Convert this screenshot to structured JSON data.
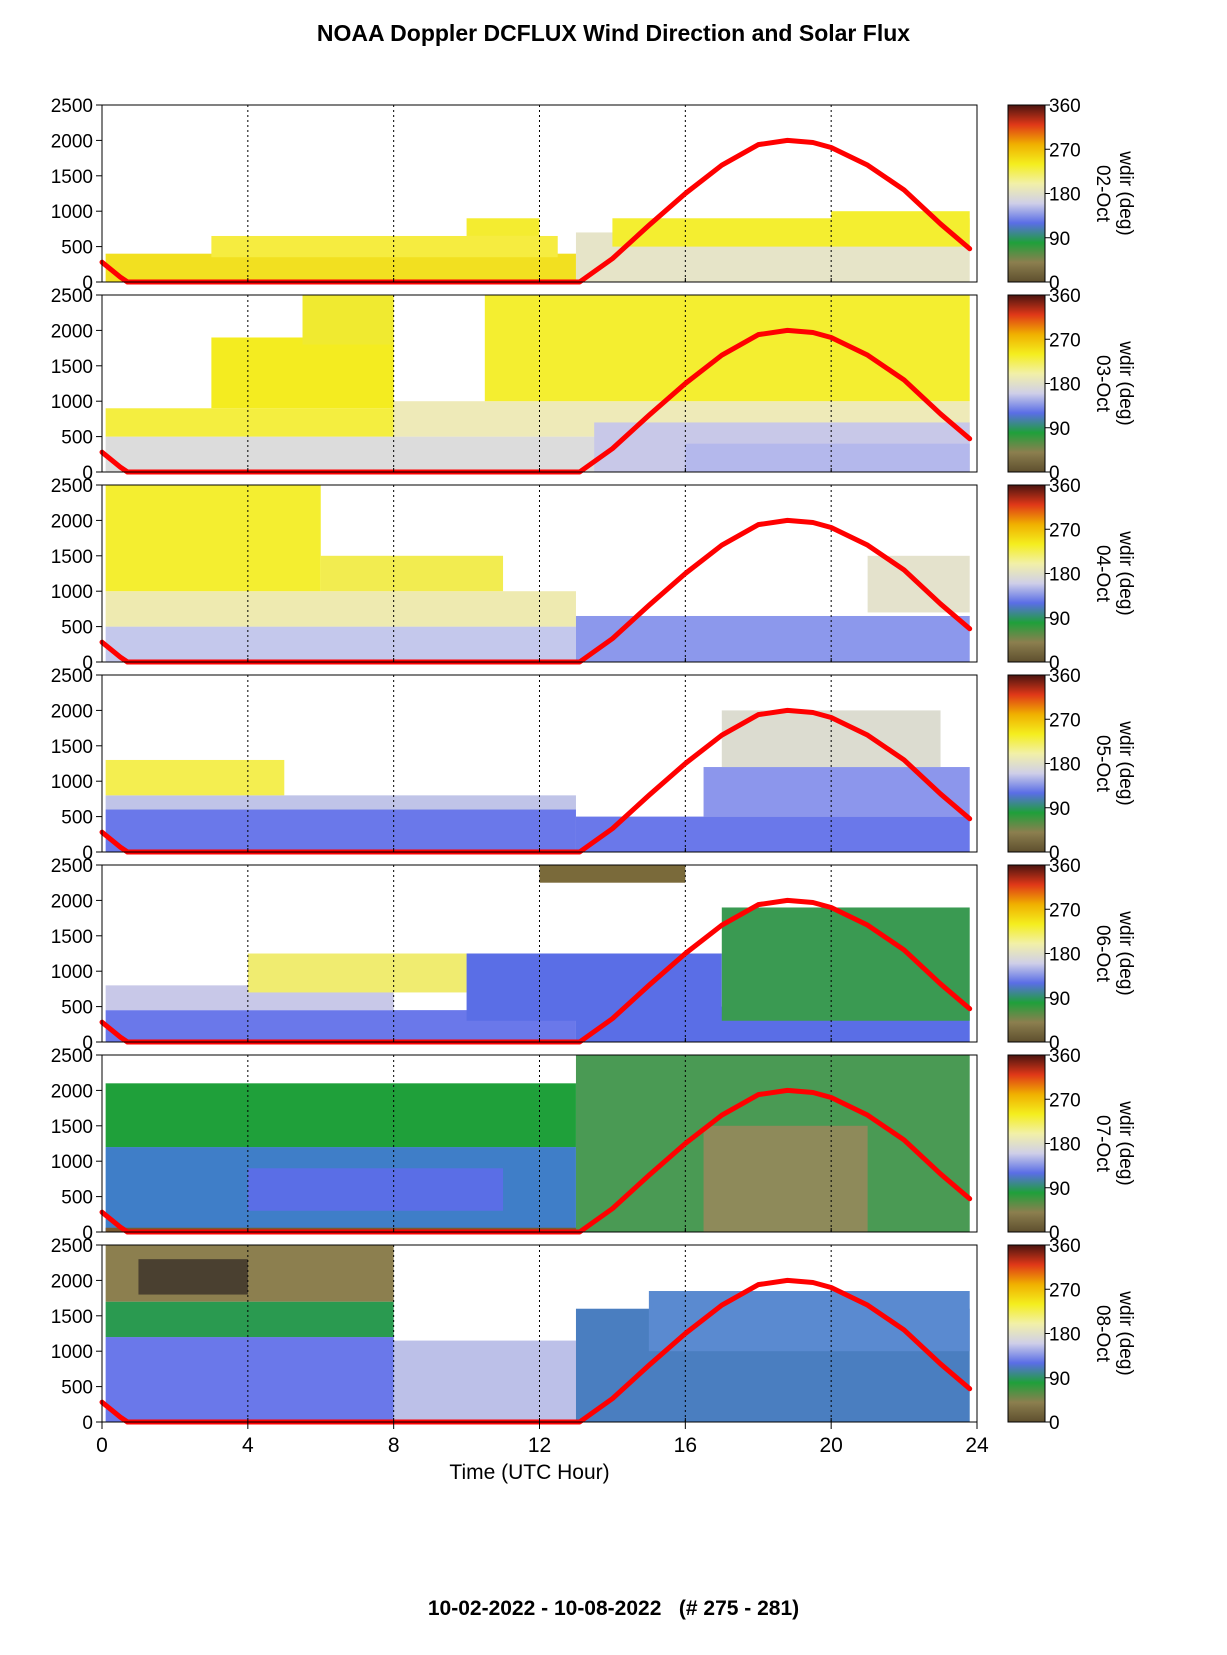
{
  "title": "NOAA Doppler DCFLUX Wind Direction and Solar Flux",
  "footer": "10-02-2022 - 10-08-2022   (# 275 - 281)",
  "colorbar": {
    "label": "wdir (deg)",
    "ticks": [
      "0",
      "90",
      "180",
      "270",
      "360"
    ],
    "stops": [
      "#5e4f2e",
      "#8c7f4f",
      "#1fa03a",
      "#5a6ee6",
      "#cfcfe8",
      "#f2f0a8",
      "#f4ee1e",
      "#f0b000",
      "#e03818",
      "#4a1410"
    ]
  },
  "chart_data": {
    "type": "heatmap",
    "xlabel": "Time (UTC Hour)",
    "xlim": [
      0,
      24
    ],
    "xticks": [
      "0",
      "4",
      "8",
      "12",
      "16",
      "20",
      "24"
    ],
    "ylim": [
      0,
      2500
    ],
    "yticks": [
      "0",
      "500",
      "1000",
      "1500",
      "2000",
      "2500"
    ],
    "grid": "vertical dotted lines at x = 4, 8, 12, 16, 20",
    "solar_flux_curve": {
      "color": "#ff0000",
      "x": [
        0,
        0.5,
        0.7,
        13.1,
        14,
        15,
        16,
        17,
        18,
        18.8,
        19.5,
        20,
        21,
        22,
        23,
        23.8
      ],
      "y": [
        280,
        70,
        0,
        0,
        330,
        800,
        1250,
        1650,
        1940,
        2000,
        1970,
        1900,
        1650,
        1300,
        820,
        470
      ]
    },
    "panels": [
      {
        "date": "02-Oct",
        "blocks": [
          {
            "x0": 0.1,
            "x1": 13.0,
            "y0": 0,
            "y1": 400,
            "c": "#f2e020"
          },
          {
            "x0": 3.0,
            "x1": 12.5,
            "y0": 350,
            "y1": 650,
            "c": "#f6ec40"
          },
          {
            "x0": 10.0,
            "x1": 12.0,
            "y0": 650,
            "y1": 900,
            "c": "#f4ec30"
          },
          {
            "x0": 13.0,
            "x1": 23.8,
            "y0": 0,
            "y1": 700,
            "c": "#e6e4c8"
          },
          {
            "x0": 14.0,
            "x1": 23.8,
            "y0": 500,
            "y1": 900,
            "c": "#f4ee30"
          },
          {
            "x0": 20.0,
            "x1": 23.8,
            "y0": 700,
            "y1": 1000,
            "c": "#f4ee30"
          }
        ]
      },
      {
        "date": "03-Oct",
        "blocks": [
          {
            "x0": 0.1,
            "x1": 23.8,
            "y0": 0,
            "y1": 500,
            "c": "#dcdcdc"
          },
          {
            "x0": 0.1,
            "x1": 8.0,
            "y0": 500,
            "y1": 900,
            "c": "#f4ee40"
          },
          {
            "x0": 3.0,
            "x1": 8.0,
            "y0": 900,
            "y1": 1900,
            "c": "#f4ec20"
          },
          {
            "x0": 5.5,
            "x1": 8.0,
            "y0": 1800,
            "y1": 2500,
            "c": "#f0ea30"
          },
          {
            "x0": 8.0,
            "x1": 23.8,
            "y0": 500,
            "y1": 1000,
            "c": "#eeeab8"
          },
          {
            "x0": 10.5,
            "x1": 23.8,
            "y0": 1000,
            "y1": 2500,
            "c": "#f4ee30"
          },
          {
            "x0": 13.5,
            "x1": 23.8,
            "y0": 0,
            "y1": 700,
            "c": "#c8c8e8"
          },
          {
            "x0": 16.0,
            "x1": 23.8,
            "y0": 0,
            "y1": 400,
            "c": "#b4b8ec"
          }
        ]
      },
      {
        "date": "04-Oct",
        "blocks": [
          {
            "x0": 0.1,
            "x1": 13.0,
            "y0": 0,
            "y1": 500,
            "c": "#c4c8ec"
          },
          {
            "x0": 0.1,
            "x1": 13.0,
            "y0": 500,
            "y1": 1000,
            "c": "#eeeab0"
          },
          {
            "x0": 0.1,
            "x1": 6.0,
            "y0": 1000,
            "y1": 2500,
            "c": "#f4ee30"
          },
          {
            "x0": 6.0,
            "x1": 11.0,
            "y0": 1000,
            "y1": 1500,
            "c": "#f2ec50"
          },
          {
            "x0": 13.0,
            "x1": 23.8,
            "y0": 0,
            "y1": 650,
            "c": "#8c98ec"
          },
          {
            "x0": 21.0,
            "x1": 23.8,
            "y0": 700,
            "y1": 1500,
            "c": "#e4e2cc"
          }
        ]
      },
      {
        "date": "05-Oct",
        "blocks": [
          {
            "x0": 0.1,
            "x1": 13.0,
            "y0": 0,
            "y1": 600,
            "c": "#6a78ea"
          },
          {
            "x0": 0.1,
            "x1": 13.0,
            "y0": 600,
            "y1": 800,
            "c": "#c0c4e8"
          },
          {
            "x0": 0.1,
            "x1": 5.0,
            "y0": 800,
            "y1": 1300,
            "c": "#f4ee50"
          },
          {
            "x0": 13.0,
            "x1": 23.8,
            "y0": 0,
            "y1": 500,
            "c": "#6a78ea"
          },
          {
            "x0": 16.5,
            "x1": 23.8,
            "y0": 500,
            "y1": 1200,
            "c": "#8c96ec"
          },
          {
            "x0": 17.0,
            "x1": 23.0,
            "y0": 1200,
            "y1": 2000,
            "c": "#dcdcd0"
          }
        ]
      },
      {
        "date": "06-Oct",
        "blocks": [
          {
            "x0": 0.1,
            "x1": 13.0,
            "y0": 0,
            "y1": 450,
            "c": "#6a78ea"
          },
          {
            "x0": 0.1,
            "x1": 8.0,
            "y0": 450,
            "y1": 800,
            "c": "#c8c8e8"
          },
          {
            "x0": 4.0,
            "x1": 10.0,
            "y0": 700,
            "y1": 1250,
            "c": "#f0ec70"
          },
          {
            "x0": 10.0,
            "x1": 17.0,
            "y0": 300,
            "y1": 1250,
            "c": "#5a6ee6"
          },
          {
            "x0": 13.0,
            "x1": 23.8,
            "y0": 0,
            "y1": 500,
            "c": "#5a6ee6"
          },
          {
            "x0": 17.0,
            "x1": 23.8,
            "y0": 300,
            "y1": 1900,
            "c": "#3a9a52"
          },
          {
            "x0": 12.0,
            "x1": 16.0,
            "y0": 2250,
            "y1": 2500,
            "c": "#7a6a3a"
          }
        ]
      },
      {
        "date": "07-Oct",
        "blocks": [
          {
            "x0": 0.1,
            "x1": 13.0,
            "y0": 0,
            "y1": 1200,
            "c": "#3f7ec8"
          },
          {
            "x0": 0.1,
            "x1": 13.0,
            "y0": 1200,
            "y1": 2100,
            "c": "#1fa03a"
          },
          {
            "x0": 4.0,
            "x1": 11.0,
            "y0": 300,
            "y1": 900,
            "c": "#5a6ee6"
          },
          {
            "x0": 13.0,
            "x1": 23.8,
            "y0": 0,
            "y1": 2500,
            "c": "#4a9a54"
          },
          {
            "x0": 16.5,
            "x1": 21.0,
            "y0": 0,
            "y1": 1500,
            "c": "#8e8a5a"
          },
          {
            "x0": 0.1,
            "x1": 13.0,
            "y0": 0,
            "y1": 60,
            "c": "#7a5a30"
          }
        ]
      },
      {
        "date": "08-Oct",
        "blocks": [
          {
            "x0": 0.1,
            "x1": 8.0,
            "y0": 0,
            "y1": 1200,
            "c": "#6a78ea"
          },
          {
            "x0": 0.1,
            "x1": 8.0,
            "y0": 1200,
            "y1": 1700,
            "c": "#2a9a50"
          },
          {
            "x0": 0.1,
            "x1": 8.0,
            "y0": 1700,
            "y1": 2500,
            "c": "#8c7f4f"
          },
          {
            "x0": 1.0,
            "x1": 4.0,
            "y0": 1800,
            "y1": 2300,
            "c": "#4a4030"
          },
          {
            "x0": 8.0,
            "x1": 13.0,
            "y0": 0,
            "y1": 1150,
            "c": "#bcc0e8"
          },
          {
            "x0": 13.0,
            "x1": 23.8,
            "y0": 0,
            "y1": 1600,
            "c": "#4a7ec0"
          },
          {
            "x0": 15.0,
            "x1": 23.8,
            "y0": 1000,
            "y1": 1850,
            "c": "#5a8ad0"
          }
        ]
      }
    ]
  }
}
